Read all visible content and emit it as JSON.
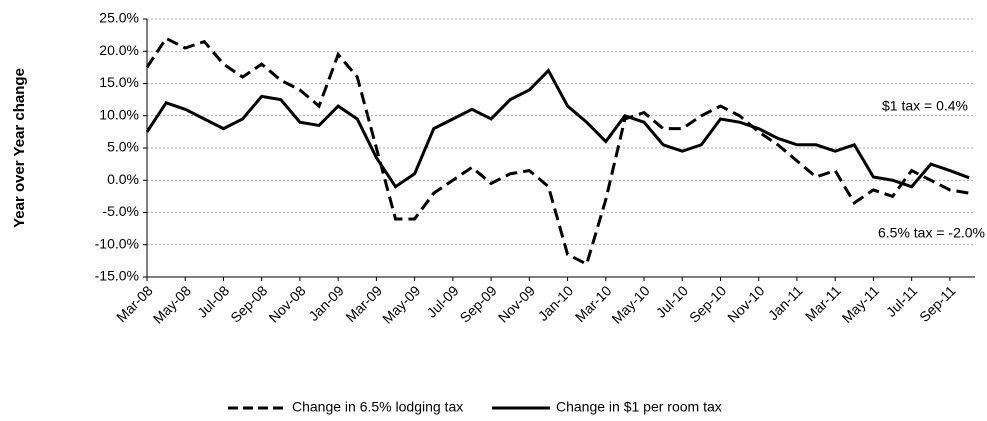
{
  "chart_data": {
    "type": "line",
    "ylabel": "Year over Year change",
    "categories": [
      "Mar-08",
      null,
      "May-08",
      null,
      "Jul-08",
      null,
      "Sep-08",
      null,
      "Nov-08",
      null,
      "Jan-09",
      null,
      "Mar-09",
      null,
      "May-09",
      null,
      "Jul-09",
      null,
      "Sep-09",
      null,
      "Nov-09",
      null,
      "Jan-10",
      null,
      "Mar-10",
      null,
      "May-10",
      null,
      "Jul-10",
      null,
      "Sep-10",
      null,
      "Nov-10",
      null,
      "Jan-11",
      null,
      "Mar-11",
      null,
      "May-11",
      null,
      "Jul-11",
      null,
      "Sep-11",
      null
    ],
    "series": [
      {
        "name": "Change in 6.5% lodging tax",
        "color": "#000000",
        "dash": true,
        "values": [
          17.5,
          22,
          20.5,
          21.5,
          18,
          16,
          18,
          15.5,
          14,
          11.5,
          19.5,
          16,
          5,
          -6,
          -6,
          -2,
          0,
          2,
          -0.5,
          1,
          1.5,
          -1,
          -11.5,
          -13,
          -3,
          9.5,
          10.5,
          8,
          8,
          10,
          11.5,
          10,
          7.5,
          5.5,
          3,
          0.5,
          1.5,
          -3.5,
          -1.5,
          -2.5,
          1.5,
          0,
          -1.5,
          -2
        ]
      },
      {
        "name": "Change in $1 per room tax",
        "color": "#000000",
        "dash": false,
        "values": [
          7.5,
          12,
          11,
          9.5,
          8,
          9.5,
          13,
          12.5,
          9,
          8.5,
          11.5,
          9.5,
          3.5,
          -1,
          1,
          8,
          9.5,
          11,
          9.5,
          12.5,
          14,
          17,
          11.5,
          9,
          6,
          10,
          9,
          5.5,
          4.5,
          5.5,
          9.5,
          9,
          8,
          6.5,
          5.5,
          5.5,
          4.5,
          5.5,
          0.5,
          0,
          -1,
          2.5,
          1.5,
          0.4
        ]
      }
    ],
    "ylim": [
      -15,
      25
    ],
    "yticks": [
      {
        "value": -15,
        "label": "-15.0%"
      },
      {
        "value": -10,
        "label": "-10.0%"
      },
      {
        "value": -5,
        "label": "-5.0%"
      },
      {
        "value": 0,
        "label": "0.0%"
      },
      {
        "value": 5,
        "label": "5.0%"
      },
      {
        "value": 10,
        "label": "10.0%"
      },
      {
        "value": 15,
        "label": "15.0%"
      },
      {
        "value": 20,
        "label": "20.0%"
      },
      {
        "value": 25,
        "label": "25.0%"
      }
    ],
    "grid": true,
    "legend": "bottom",
    "annotations": [
      "$1 tax = 0.4%",
      "6.5% tax = -2.0%"
    ]
  }
}
